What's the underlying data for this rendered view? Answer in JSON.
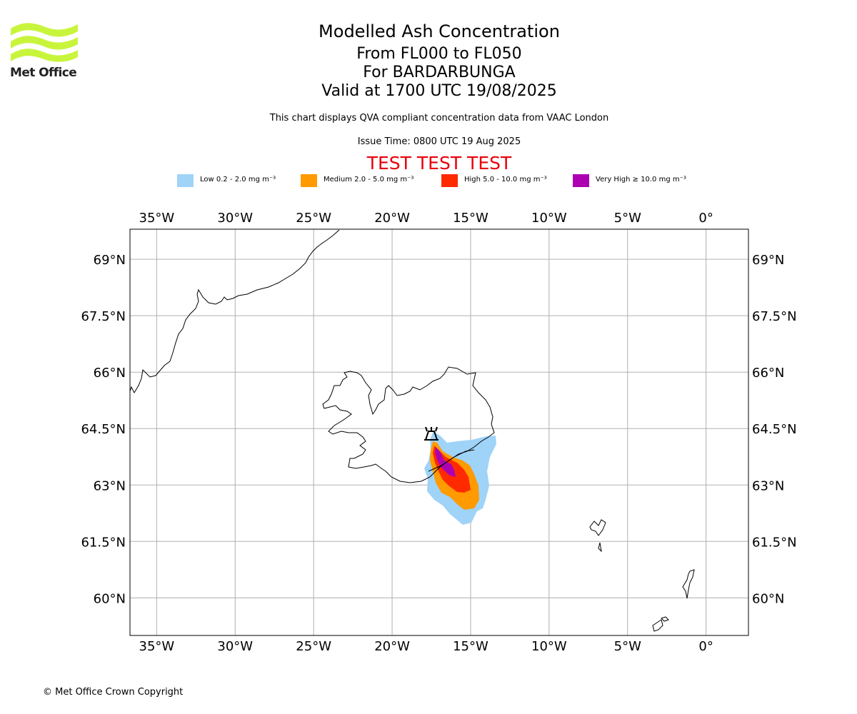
{
  "logo": {
    "text": "Met Office",
    "icon": "met-office-wave-logo",
    "color": "#c8f53c"
  },
  "title": {
    "line1": "Modelled Ash Concentration",
    "line2": "From FL000 to FL050",
    "line3": "For BARDARBUNGA",
    "line4": "Valid at 1700 UTC 19/08/2025"
  },
  "subtitle": "This chart displays QVA compliant concentration data from VAAC London",
  "issue_time": "Issue Time: 0800 UTC 19 Aug 2025",
  "test_banner": "TEST TEST TEST",
  "legend": [
    {
      "label": "Low 0.2 - 2.0 mg m⁻³",
      "color": "#9fd3f8"
    },
    {
      "label": "Medium 2.0 - 5.0 mg m⁻³",
      "color": "#ff9a00"
    },
    {
      "label": "High 5.0 - 10.0 mg m⁻³",
      "color": "#ff2a00"
    },
    {
      "label": "Very High ≥ 10.0 mg m⁻³",
      "color": "#ad00b0"
    }
  ],
  "map": {
    "lon_range": [
      -36.7,
      2.7
    ],
    "lat_range": [
      59.0,
      69.8
    ],
    "lon_ticks": [
      -35,
      -30,
      -25,
      -20,
      -15,
      -10,
      -5,
      0
    ],
    "lon_tick_labels": [
      "35°W",
      "30°W",
      "25°W",
      "20°W",
      "15°W",
      "10°W",
      "5°W",
      "0°"
    ],
    "lat_ticks": [
      60,
      61.5,
      63,
      64.5,
      66,
      67.5,
      69
    ],
    "lat_tick_labels": [
      "60°N",
      "61.5°N",
      "63°N",
      "64.5°N",
      "66°N",
      "67.5°N",
      "69°N"
    ],
    "grid": true,
    "volcano": {
      "name": "BARDARBUNGA",
      "lon": -17.5,
      "lat": 64.65,
      "icon": "volcano-icon"
    }
  },
  "copyright": "© Met Office Crown Copyright"
}
